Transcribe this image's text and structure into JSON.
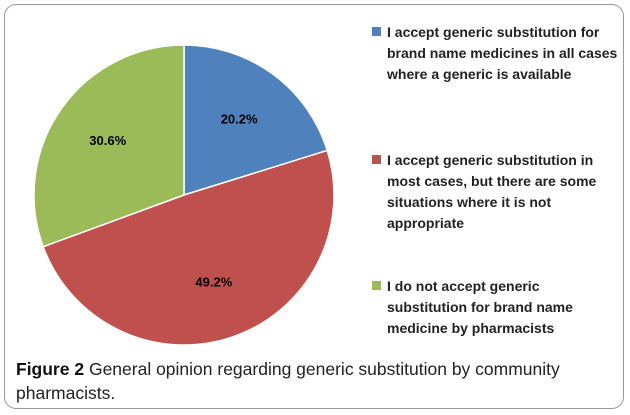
{
  "chart_data": {
    "type": "pie",
    "categories": [
      "I accept generic substitution for brand name medicines in all cases where a generic is available",
      "I accept generic substitution in most cases, but there are some situations where it is not appropriate",
      "I do not accept generic substitution for brand name medicine by pharmacists"
    ],
    "values": [
      20.2,
      49.2,
      30.6
    ],
    "value_labels": [
      "20.2%",
      "49.2%",
      "30.6%"
    ],
    "colors": [
      "#4f81bd",
      "#c0504d",
      "#9bbb59"
    ],
    "legend": "right"
  },
  "caption": {
    "label": "Figure 2",
    "text": "General opinion regarding generic substitution by community pharmacists."
  }
}
